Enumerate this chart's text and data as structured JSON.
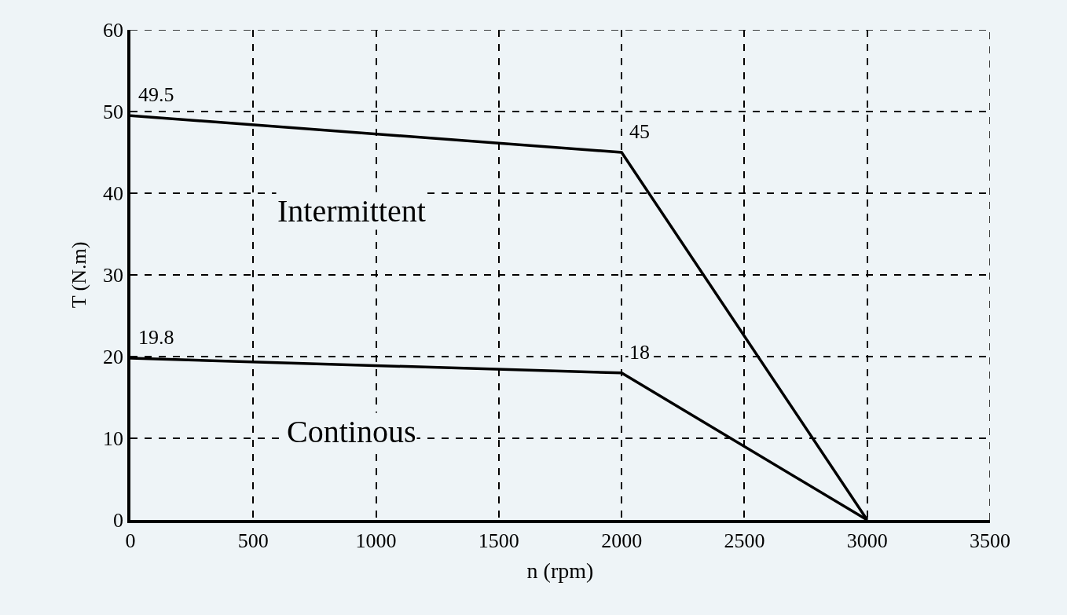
{
  "chart_data": {
    "type": "line",
    "xlabel": "n (rpm)",
    "ylabel": "T (N.m)",
    "x": [
      0,
      2000,
      3000
    ],
    "series": [
      {
        "name": "Intermittent",
        "color": "#000000",
        "values": [
          49.5,
          45,
          0
        ],
        "value_labels": [
          "49.5",
          "45",
          null
        ]
      },
      {
        "name": "Continous",
        "color": "#000000",
        "values": [
          19.8,
          18,
          0
        ],
        "value_labels": [
          "19.8",
          "18",
          null
        ]
      }
    ],
    "xlim": [
      0,
      3500
    ],
    "xticks": [
      0,
      500,
      1000,
      1500,
      2000,
      2500,
      3000,
      3500
    ],
    "ylim": [
      0,
      60
    ],
    "yticks": [
      0,
      10,
      20,
      30,
      40,
      50,
      60
    ],
    "grid": true,
    "legend": false,
    "marker": "none",
    "line_style": "solid"
  }
}
